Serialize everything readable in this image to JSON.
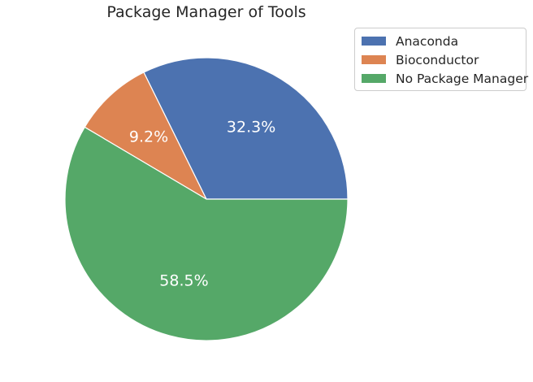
{
  "chart_data": {
    "type": "pie",
    "title": "Package Manager of Tools",
    "categories": [
      "Anaconda",
      "Bioconductor",
      "No Package Manager"
    ],
    "values": [
      32.3,
      9.2,
      58.5
    ],
    "labels": [
      "32.3%",
      "9.2%",
      "58.5%"
    ],
    "colors": [
      "#4c72b0",
      "#dd8452",
      "#55a868"
    ],
    "start_angle_deg": 0,
    "direction": "counterclockwise",
    "legend_placement": "upper-right, outside plot"
  }
}
